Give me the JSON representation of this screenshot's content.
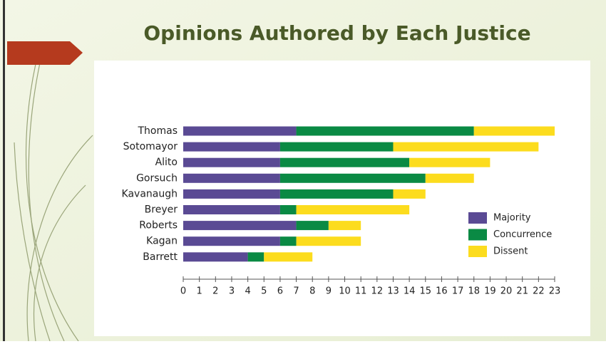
{
  "chart_data": {
    "type": "stacked-barh",
    "title": "Opinions Authored by Each Justice",
    "categories": [
      "Thomas",
      "Sotomayor",
      "Alito",
      "Gorsuch",
      "Kavanaugh",
      "Breyer",
      "Roberts",
      "Kagan",
      "Barrett"
    ],
    "series": [
      {
        "name": "Majority",
        "color": "#5a4a94",
        "values": [
          7,
          6,
          6,
          6,
          6,
          6,
          7,
          6,
          4
        ]
      },
      {
        "name": "Concurrence",
        "color": "#0a8a44",
        "values": [
          11,
          7,
          8,
          9,
          7,
          1,
          2,
          1,
          1
        ]
      },
      {
        "name": "Dissent",
        "color": "#fcdc1e",
        "values": [
          5,
          9,
          5,
          3,
          2,
          7,
          2,
          4,
          3
        ]
      }
    ],
    "xlim": [
      0,
      23
    ],
    "xticks": [
      0,
      1,
      2,
      3,
      4,
      5,
      6,
      7,
      8,
      9,
      10,
      11,
      12,
      13,
      14,
      15,
      16,
      17,
      18,
      19,
      20,
      21,
      22,
      23
    ]
  }
}
